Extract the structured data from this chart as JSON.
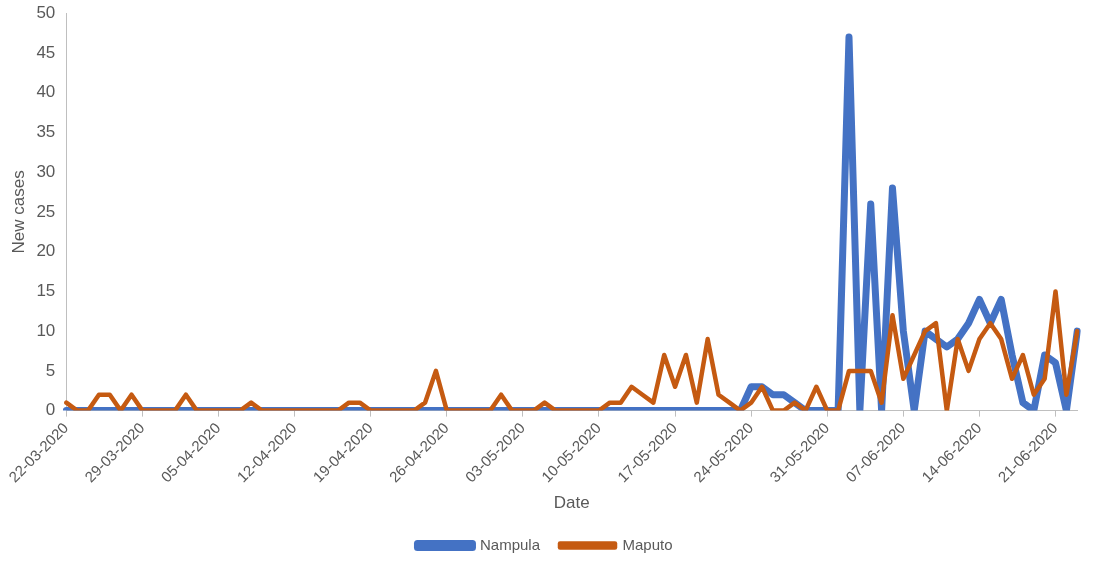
{
  "chart_data": {
    "type": "line",
    "xlabel": "Date",
    "ylabel": "New cases",
    "categories": [
      "22-03-2020",
      null,
      null,
      null,
      null,
      null,
      null,
      "29-03-2020",
      null,
      null,
      null,
      null,
      null,
      null,
      "05-04-2020",
      null,
      null,
      null,
      null,
      null,
      null,
      "12-04-2020",
      null,
      null,
      null,
      null,
      null,
      null,
      "19-04-2020",
      null,
      null,
      null,
      null,
      null,
      null,
      "26-04-2020",
      null,
      null,
      null,
      null,
      null,
      null,
      "03-05-2020",
      null,
      null,
      null,
      null,
      null,
      null,
      "10-05-2020",
      null,
      null,
      null,
      null,
      null,
      null,
      "17-05-2020",
      null,
      null,
      null,
      null,
      null,
      null,
      "24-05-2020",
      null,
      null,
      null,
      null,
      null,
      null,
      "31-05-2020",
      null,
      null,
      null,
      null,
      null,
      null,
      "07-06-2020",
      null,
      null,
      null,
      null,
      null,
      null,
      "14-06-2020",
      null,
      null,
      null,
      null,
      null,
      null,
      "21-06-2020",
      null,
      null
    ],
    "series": [
      {
        "name": "Nampula",
        "color": "#4472c4",
        "values": [
          0,
          0,
          0,
          0,
          0,
          0,
          0,
          0,
          0,
          0,
          0,
          0,
          0,
          0,
          0,
          0,
          0,
          0,
          0,
          0,
          0,
          0,
          0,
          0,
          0,
          0,
          0,
          0,
          0,
          0,
          0,
          0,
          0,
          0,
          0,
          0,
          0,
          0,
          0,
          0,
          0,
          0,
          0,
          0,
          0,
          0,
          0,
          0,
          0,
          0,
          0,
          0,
          0,
          0,
          0,
          0,
          0,
          0,
          0,
          0,
          0,
          0,
          0,
          3,
          3,
          2,
          2,
          1,
          0,
          0,
          0,
          0,
          47,
          0,
          26,
          0,
          28,
          10,
          0,
          10,
          9,
          8,
          9,
          11,
          14,
          11,
          14,
          7,
          1,
          0,
          7,
          6,
          0,
          10
        ]
      },
      {
        "name": "Maputo",
        "color": "#c55a11",
        "values": [
          1,
          0,
          0,
          2,
          2,
          0,
          2,
          0,
          0,
          0,
          0,
          2,
          0,
          0,
          0,
          0,
          0,
          1,
          0,
          0,
          0,
          0,
          0,
          0,
          0,
          0,
          1,
          1,
          0,
          0,
          0,
          0,
          0,
          1,
          5,
          0,
          0,
          0,
          0,
          0,
          2,
          0,
          0,
          0,
          1,
          0,
          0,
          0,
          0,
          0,
          1,
          1,
          3,
          2,
          1,
          7,
          3,
          7,
          1,
          9,
          2,
          1,
          0,
          1,
          3,
          0,
          0,
          1,
          0,
          3,
          0,
          0,
          5,
          5,
          5,
          1,
          12,
          4,
          7,
          10,
          11,
          0,
          9,
          5,
          9,
          11,
          9,
          4,
          7,
          2,
          4,
          15,
          2,
          10
        ]
      }
    ],
    "ylim": [
      0,
      50
    ],
    "yticks": [
      0,
      5,
      10,
      15,
      20,
      25,
      30,
      35,
      40,
      45,
      50
    ],
    "grid": false,
    "legend": "bottom",
    "marker": "none",
    "line_style": "solid"
  }
}
